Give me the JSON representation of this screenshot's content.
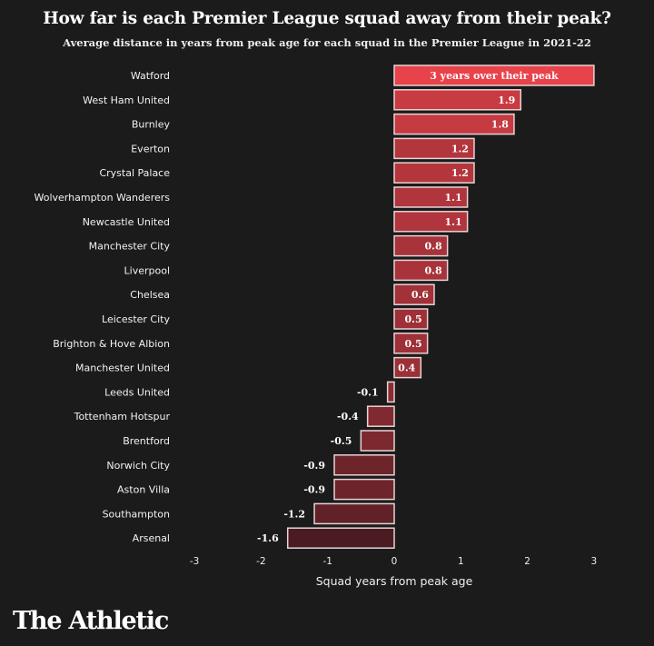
{
  "chart_data": {
    "type": "bar",
    "orientation": "horizontal",
    "title": "How far is each Premier League squad away from their peak?",
    "subtitle": "Average distance in years from peak age for each squad in the Premier League in 2021-22",
    "xlabel": "Squad years from peak age",
    "ylabel": "",
    "xlim": [
      -3,
      3
    ],
    "xticks": [
      "-3",
      "-2",
      "-1",
      "0",
      "1",
      "2",
      "3"
    ],
    "categories": [
      "Watford",
      "West Ham United",
      "Burnley",
      "Everton",
      "Crystal Palace",
      "Wolverhampton Wanderers",
      "Newcastle United",
      "Manchester City",
      "Liverpool",
      "Chelsea",
      "Leicester City",
      "Brighton & Hove Albion",
      "Manchester United",
      "Leeds United",
      "Tottenham Hotspur",
      "Brentford",
      "Norwich City",
      "Aston Villa",
      "Southampton",
      "Arsenal"
    ],
    "values": [
      3,
      1.9,
      1.8,
      1.2,
      1.2,
      1.1,
      1.1,
      0.8,
      0.8,
      0.6,
      0.5,
      0.5,
      0.4,
      -0.1,
      -0.4,
      -0.5,
      -0.9,
      -0.9,
      -1.2,
      -1.6
    ],
    "value_labels": [
      "3 years over their peak",
      "1.9",
      "1.8",
      "1.2",
      "1.2",
      "1.1",
      "1.1",
      "0.8",
      "0.8",
      "0.6",
      "0.5",
      "0.5",
      "0.4",
      "-0.1",
      "-0.4",
      "-0.5",
      "-0.9",
      "-0.9",
      "-1.2",
      "-1.6"
    ],
    "grid": false,
    "legend": "none",
    "colors": {
      "high": "#e8424a",
      "low": "#4a1c22",
      "outline": "#e6d3d5",
      "background": "#1b1b1b"
    }
  },
  "branding": {
    "logo_text": "The Athletic"
  }
}
